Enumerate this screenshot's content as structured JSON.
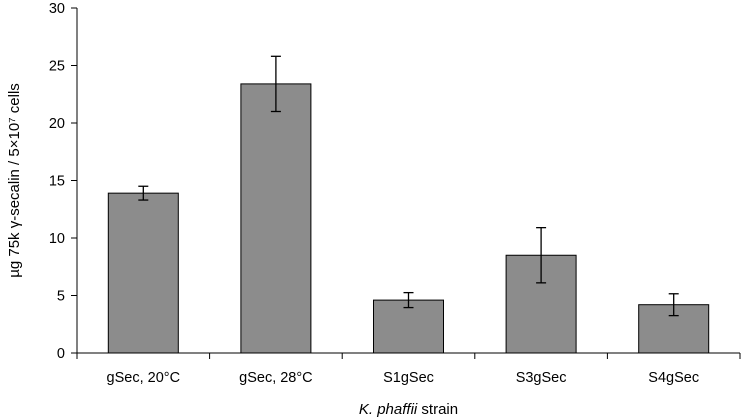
{
  "chart_data": {
    "type": "bar",
    "categories": [
      "gSec, 20°C",
      "gSec, 28°C",
      "S1gSec",
      "S3gSec",
      "S4gSec"
    ],
    "series": [
      {
        "values": [
          13.9,
          23.4,
          4.6,
          8.5,
          4.2
        ],
        "errors": [
          0.6,
          2.4,
          0.65,
          2.4,
          0.95
        ]
      }
    ],
    "xlabel_italic": "K. phaffii",
    "xlabel_rest": " strain",
    "ylabel": "µg 75k γ-secalin / 5×10⁷ cells",
    "ylim": [
      0,
      30
    ],
    "yticks": [
      0,
      5,
      10,
      15,
      20,
      25,
      30
    ],
    "grid": false,
    "legend": "none",
    "bar_color": "#8c8c8c",
    "bar_edge_color": "#000000"
  }
}
